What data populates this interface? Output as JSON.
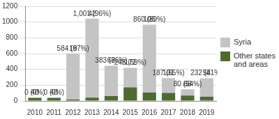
{
  "chart_data": {
    "type": "bar",
    "stacked": true,
    "data_labels": true,
    "grid": true,
    "legend": "right",
    "categories": [
      "2010",
      "2011",
      "2012",
      "2013",
      "2014",
      "2015",
      "2016",
      "2017",
      "2018",
      "2019"
    ],
    "series": [
      {
        "name": "Syria",
        "color": "#c4c4c4",
        "values": [
          0,
          0,
          584,
          1001,
          383,
          248,
          860,
          187,
          80,
          232
        ],
        "value_labels": [
          "0 (0%)",
          "0 (0%)",
          "584 (97%)",
          "1,001 (96%)",
          "383 (86%)",
          "248 (59%)",
          "860 (89%)",
          "187 (65%)",
          "80 (54%)",
          "232 (81%)"
        ]
      },
      {
        "name": "Other states and areas",
        "color": "#4e6b2f",
        "values": [
          40,
          40,
          18,
          42,
          62,
          172,
          106,
          101,
          68,
          54
        ]
      }
    ],
    "ylim": [
      0,
      1200
    ],
    "yticks": [
      0,
      200,
      400,
      600,
      800,
      1000,
      1200
    ]
  }
}
